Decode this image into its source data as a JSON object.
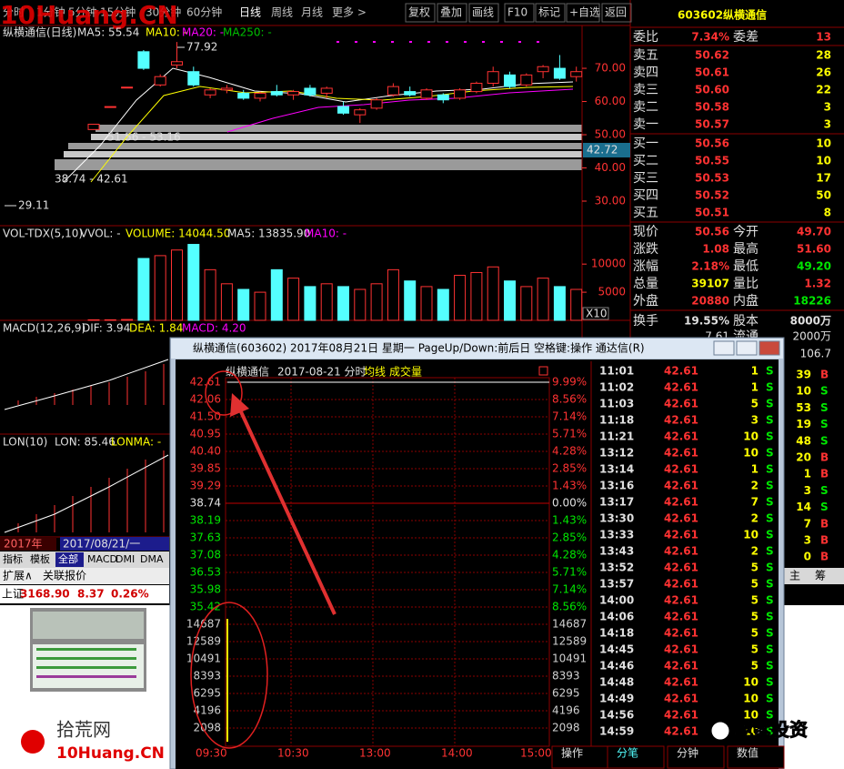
{
  "watermark": "10Huang.CN",
  "toolbar": {
    "periods": [
      "分时",
      "1分钟",
      "5分钟",
      "15分钟",
      "30分钟",
      "60分钟",
      "日线",
      "周线",
      "月线",
      "更多 >"
    ],
    "buttons": [
      "复权",
      "叠加",
      "画线",
      "F10",
      "标记",
      "+自选",
      "返回"
    ]
  },
  "quote": {
    "code": "603602",
    "name": "纵横通信",
    "ratio": [
      "委比",
      "7.34%",
      "委差",
      "13"
    ],
    "asks": [
      [
        "卖五",
        "50.62",
        "28"
      ],
      [
        "卖四",
        "50.61",
        "26"
      ],
      [
        "卖三",
        "50.60",
        "22"
      ],
      [
        "卖二",
        "50.58",
        "3"
      ],
      [
        "卖一",
        "50.57",
        "3"
      ]
    ],
    "bids": [
      [
        "买一",
        "50.56",
        "10"
      ],
      [
        "买二",
        "50.55",
        "10"
      ],
      [
        "买三",
        "50.53",
        "17"
      ],
      [
        "买四",
        "50.52",
        "50"
      ],
      [
        "买五",
        "50.51",
        "8"
      ]
    ],
    "stats": [
      [
        "现价",
        "50.56",
        "今开",
        "49.70"
      ],
      [
        "涨跌",
        "1.08",
        "最高",
        "51.60"
      ],
      [
        "涨幅",
        "2.18%",
        "最低",
        "49.20"
      ],
      [
        "总量",
        "39107",
        "量比",
        "1.32"
      ],
      [
        "外盘",
        "20880",
        "内盘",
        "18226"
      ],
      [
        "换手",
        "19.55%",
        "股本",
        "8000万"
      ]
    ],
    "partial": [
      "7.61",
      "流通",
      "2000万",
      "106.7"
    ]
  },
  "kline": {
    "title": "纵横通信(日线)",
    "indicators": [
      "MA5: 55.54",
      "MA10: -",
      "MA20: -",
      "MA250: -"
    ],
    "annotations": [
      "77.92",
      "51.56 - 53.16",
      "38.74 - 42.61",
      "29.11"
    ],
    "current": "42.72",
    "ylim": [
      22.6,
      82.9
    ],
    "yticks": [
      {
        "value": 70,
        "label": "70.00"
      },
      {
        "value": 60,
        "label": "60.00"
      },
      {
        "value": 50,
        "label": "50.00"
      },
      {
        "value": 40,
        "label": "40.00"
      },
      {
        "value": 30,
        "label": "30.00"
      }
    ],
    "open": [
      51.56,
      58.48,
      64.33,
      75.0,
      65.0,
      71.0,
      69.0,
      62.0,
      63.5,
      62.5,
      61.0,
      63.0,
      62.0,
      64.0,
      62.5,
      58.5,
      56.0,
      58.0,
      62.0,
      63.0,
      61.0,
      62.0,
      61.0,
      63.0,
      65.5,
      68.0,
      65.0,
      69.0,
      70.0,
      67.5
    ],
    "high": [
      53.16,
      58.48,
      64.33,
      75.5,
      68.2,
      77.92,
      70.5,
      64.0,
      65.0,
      63.5,
      63.0,
      65.0,
      63.5,
      65.0,
      64.5,
      60.0,
      58.0,
      61.0,
      65.5,
      64.5,
      64.0,
      62.5,
      64.0,
      66.0,
      70.5,
      69.0,
      68.5,
      71.0,
      74.0,
      70.5
    ],
    "low": [
      51.56,
      58.48,
      64.33,
      69.5,
      64.5,
      70.0,
      64.5,
      61.0,
      62.5,
      60.5,
      60.0,
      61.5,
      60.5,
      61.5,
      61.0,
      56.0,
      53.5,
      57.5,
      61.5,
      61.5,
      60.5,
      59.5,
      60.5,
      62.5,
      64.5,
      64.0,
      64.5,
      67.0,
      66.5,
      66.0
    ],
    "close": [
      53.16,
      58.48,
      64.33,
      70.0,
      67.5,
      72.0,
      65.0,
      63.5,
      64.0,
      61.0,
      62.5,
      62.0,
      63.0,
      62.0,
      64.0,
      56.5,
      57.5,
      60.5,
      64.5,
      62.0,
      63.5,
      60.5,
      63.5,
      65.5,
      69.0,
      64.5,
      68.0,
      70.5,
      67.0,
      69.0
    ]
  },
  "volume": {
    "header": [
      "VOL-TDX(5,10)",
      "VVOL: -",
      "VOLUME: 14044.50",
      "MA5: 13835.90",
      "MA10: -"
    ],
    "unit": "X10",
    "ylim": [
      0,
      16500
    ],
    "yticks": [
      10000,
      5000
    ],
    "values": [
      100,
      100,
      150,
      11000,
      11500,
      12500,
      13500,
      9000,
      6500,
      5500,
      5000,
      9000,
      7500,
      6000,
      6500,
      6000,
      5500,
      6500,
      9000,
      7000,
      6000,
      5500,
      8000,
      8500,
      9500,
      7000,
      6000,
      7500,
      6000,
      5500
    ]
  },
  "macd": [
    "MACD(12,26,9)",
    "DIF: 3.94",
    "DEA: 1.84",
    "MACD: 4.20"
  ],
  "lon": [
    "LON(10)",
    "LON: 85.46",
    "LONMA: -"
  ],
  "bottom": {
    "dates": [
      "2017年",
      "2017/08/21/一"
    ],
    "tabs": [
      "指标",
      "模板",
      "全部",
      "MACD",
      "DMI",
      "DMA"
    ],
    "links": [
      "扩展∧",
      "关联报价"
    ],
    "index": [
      "上证",
      "3168.90",
      "8.37",
      "0.26%"
    ]
  },
  "popup": {
    "title": "纵横通信(603602) 2017年08月21日 星期一 PageUp/Down:前后日 空格键:操作 通达信(R)",
    "chart_title": [
      "纵横通信",
      "2017-08-21 分时",
      "均线",
      "成交量"
    ],
    "price_labels": [
      "42.61",
      "42.06",
      "41.50",
      "40.95",
      "40.40",
      "39.85",
      "39.29",
      "38.74",
      "38.19",
      "37.63",
      "37.08",
      "36.53",
      "35.98",
      "35.42"
    ],
    "pct_labels": [
      "9.99%",
      "8.56%",
      "7.14%",
      "5.71%",
      "4.28%",
      "2.85%",
      "1.43%",
      "0.00%",
      "1.43%",
      "2.85%",
      "4.28%",
      "5.71%",
      "7.14%",
      "8.56%"
    ],
    "vol_labels": [
      "14687",
      "12589",
      "10491",
      "8393",
      "6295",
      "4196",
      "2098"
    ],
    "times": [
      "09:30",
      "10:30",
      "13:00",
      "14:00",
      "15:00"
    ],
    "tabs": [
      "操作",
      "分笔",
      "分钟",
      "数值"
    ],
    "trades": [
      [
        "11:01",
        "42.61",
        "1",
        "S"
      ],
      [
        "11:02",
        "42.61",
        "1",
        "S"
      ],
      [
        "11:03",
        "42.61",
        "5",
        "S"
      ],
      [
        "11:18",
        "42.61",
        "3",
        "S"
      ],
      [
        "11:21",
        "42.61",
        "10",
        "S"
      ],
      [
        "13:12",
        "42.61",
        "10",
        "S"
      ],
      [
        "13:14",
        "42.61",
        "1",
        "S"
      ],
      [
        "13:16",
        "42.61",
        "2",
        "S"
      ],
      [
        "13:17",
        "42.61",
        "7",
        "S"
      ],
      [
        "13:30",
        "42.61",
        "2",
        "S"
      ],
      [
        "13:33",
        "42.61",
        "10",
        "S"
      ],
      [
        "13:43",
        "42.61",
        "2",
        "S"
      ],
      [
        "13:52",
        "42.61",
        "5",
        "S"
      ],
      [
        "13:57",
        "42.61",
        "5",
        "S"
      ],
      [
        "14:00",
        "42.61",
        "5",
        "S"
      ],
      [
        "14:06",
        "42.61",
        "5",
        "S"
      ],
      [
        "14:18",
        "42.61",
        "5",
        "S"
      ],
      [
        "14:45",
        "42.61",
        "5",
        "S"
      ],
      [
        "14:46",
        "42.61",
        "5",
        "S"
      ],
      [
        "14:48",
        "42.61",
        "10",
        "S"
      ],
      [
        "14:49",
        "42.61",
        "10",
        "S"
      ],
      [
        "14:56",
        "42.61",
        "10",
        "S"
      ],
      [
        "14:59",
        "42.61",
        "10",
        "S"
      ]
    ]
  },
  "side_trades": [
    [
      "39",
      "B"
    ],
    [
      "10",
      "S"
    ],
    [
      "53",
      "S"
    ],
    [
      "19",
      "S"
    ],
    [
      "48",
      "S"
    ],
    [
      "20",
      "B"
    ],
    [
      "1",
      "B"
    ],
    [
      "3",
      "S"
    ],
    [
      "14",
      "S"
    ],
    [
      "7",
      "B"
    ],
    [
      "3",
      "B"
    ],
    [
      "0",
      "B"
    ]
  ],
  "side_tabs": [
    "主",
    "筹"
  ],
  "footer": [
    "拾荒网",
    "10Huang.CN",
    "乾紫投资"
  ]
}
